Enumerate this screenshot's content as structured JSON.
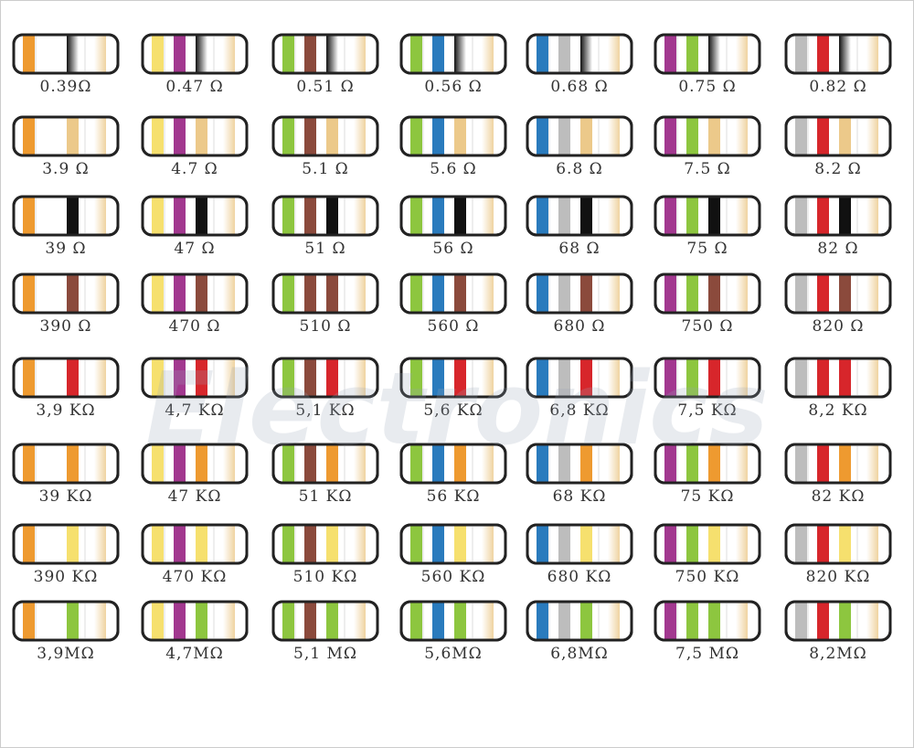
{
  "watermark": "Electronics",
  "grid": [
    [
      "0.39Ω",
      "0.47 Ω",
      "0.51 Ω",
      "0.56 Ω",
      "0.68 Ω",
      "0.75 Ω",
      "0.82 Ω"
    ],
    [
      "3.9 Ω",
      "4.7 Ω",
      "5.1 Ω",
      "5.6 Ω",
      "6.8 Ω",
      "7.5 Ω",
      "8.2 Ω"
    ],
    [
      "39 Ω",
      "47 Ω",
      "51 Ω",
      "56 Ω",
      "68 Ω",
      "75 Ω",
      "82 Ω"
    ],
    [
      "390 Ω",
      "470 Ω",
      "510 Ω",
      "560 Ω",
      "680 Ω",
      "750 Ω",
      "820 Ω"
    ],
    [
      "3,9 KΩ",
      "4,7 KΩ",
      "5,1 KΩ",
      "5,6 KΩ",
      "6,8 KΩ",
      "7,5 KΩ",
      "8,2 KΩ"
    ],
    [
      "39 KΩ",
      "47 KΩ",
      "51 KΩ",
      "56 KΩ",
      "68 KΩ",
      "75 KΩ",
      "82 KΩ"
    ],
    [
      "390 KΩ",
      "470 KΩ",
      "510 KΩ",
      "560 KΩ",
      "680 KΩ",
      "750 KΩ",
      "820 KΩ"
    ],
    [
      "3,9MΩ",
      "4,7MΩ",
      "5,1 MΩ",
      "5,6MΩ",
      "6,8MΩ",
      "7,5 MΩ",
      "8,2MΩ"
    ]
  ]
}
